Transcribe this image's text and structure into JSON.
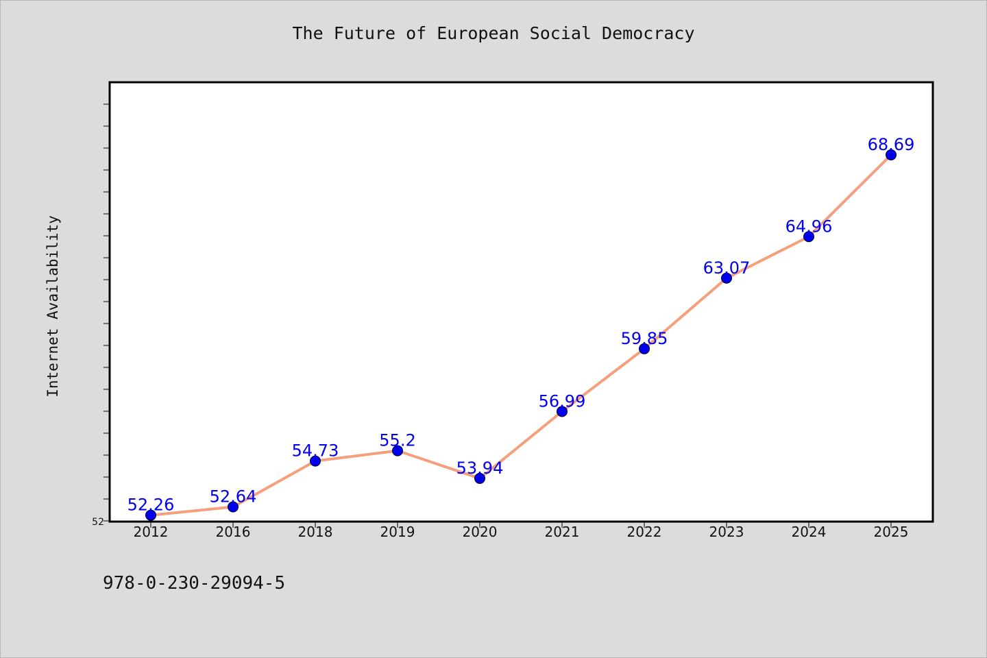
{
  "chart_data": {
    "type": "line",
    "title": "The Future of European Social Democracy",
    "xlabel": "",
    "ylabel": "Internet Availability",
    "categories": [
      "2012",
      "2016",
      "2018",
      "2019",
      "2020",
      "2021",
      "2022",
      "2023",
      "2024",
      "2025"
    ],
    "series": [
      {
        "values": [
          52.26,
          52.64,
          54.73,
          55.2,
          53.94,
          56.99,
          59.85,
          63.07,
          64.96,
          68.69
        ],
        "labels": [
          "52.26",
          "52.64",
          "54.73",
          "55.2",
          "53.94",
          "56.99",
          "59.85",
          "63.07",
          "64.96",
          "68.69"
        ],
        "line_color": "#f4a07c",
        "marker_color": "#0000ee"
      }
    ],
    "ylim": [
      52,
      72
    ],
    "y_tick_labels": [
      "52"
    ],
    "grid": false,
    "legend": "none"
  },
  "footer": {
    "code": "978-0-230-29094-5"
  }
}
